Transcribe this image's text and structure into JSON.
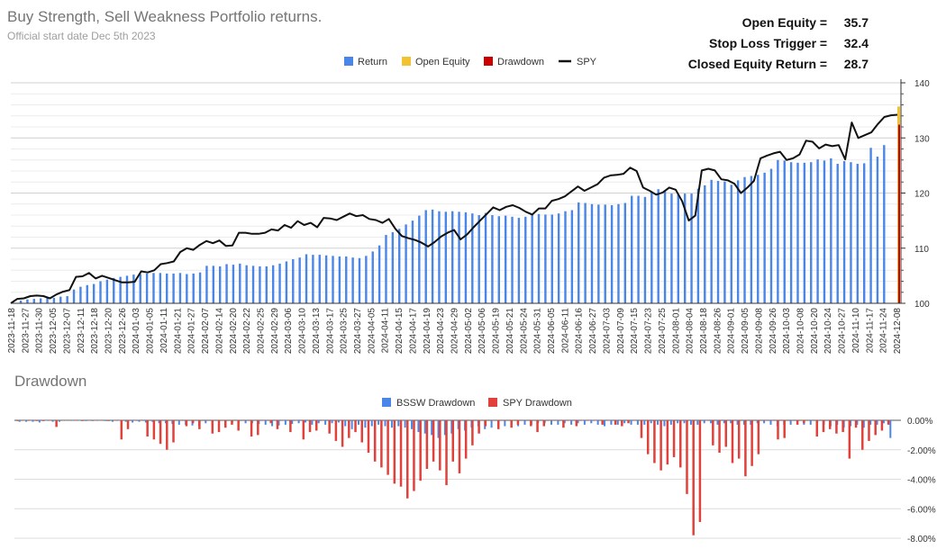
{
  "header": {
    "title": "Buy Strength, Sell Weakness Portfolio returns.",
    "subtitle": "Official start date Dec 5th 2023"
  },
  "stats": [
    {
      "label": "Open Equity =",
      "value": "35.7"
    },
    {
      "label": "Stop Loss Trigger =",
      "value": "32.4"
    },
    {
      "label": "Closed Equity Return =",
      "value": "28.7"
    }
  ],
  "colors": {
    "return": "#4a86e8",
    "open_equity": "#f1c232",
    "drawdown": "#cc0000",
    "spy": "#111111",
    "bssw_dd": "#4a86e8",
    "spy_dd": "#e0413a"
  },
  "chart_data": [
    {
      "type": "bar",
      "legend": [
        "Return",
        "Open Equity",
        "Drawdown",
        "SPY"
      ],
      "legend_position": "top",
      "ylim": [
        100,
        140
      ],
      "yticks": [
        "100",
        "110",
        "120",
        "130",
        "140"
      ],
      "grid": true,
      "x_tick_labels": [
        "2023-11-18",
        "2023-11-27",
        "2023-11-30",
        "2023-12-05",
        "2023-12-07",
        "2023-12-11",
        "2023-12-18",
        "2023-12-20",
        "2023-12-26",
        "2024-01-03",
        "2024-01-05",
        "2024-01-11",
        "2024-01-21",
        "2024-01-27",
        "2024-02-07",
        "2024-02-14",
        "2024-02-20",
        "2024-02-22",
        "2024-02-25",
        "2024-02-29",
        "2024-03-06",
        "2024-03-10",
        "2024-03-13",
        "2024-03-17",
        "2024-03-25",
        "2024-03-27",
        "2024-04-05",
        "2024-04-11",
        "2024-04-15",
        "2024-04-17",
        "2024-04-19",
        "2024-04-23",
        "2024-04-29",
        "2024-05-02",
        "2024-05-06",
        "2024-05-19",
        "2024-05-21",
        "2024-05-24",
        "2024-05-31",
        "2024-06-05",
        "2024-06-11",
        "2024-06-16",
        "2024-06-27",
        "2024-07-03",
        "2024-07-09",
        "2024-07-15",
        "2024-07-23",
        "2024-07-25",
        "2024-08-01",
        "2024-08-04",
        "2024-08-18",
        "2024-08-26",
        "2024-09-01",
        "2024-09-05",
        "2024-09-08",
        "2024-09-26",
        "2024-10-03",
        "2024-10-08",
        "2024-10-20",
        "2024-10-24",
        "2024-10-27",
        "2024-11-10",
        "2024-11-17",
        "2024-11-24",
        "2024-12-08"
      ],
      "return_values": [
        100.0,
        100.5,
        100.7,
        100.8,
        100.9,
        101.0,
        101.0,
        101.2,
        101.3,
        102.5,
        103.0,
        103.3,
        103.5,
        104.0,
        104.3,
        104.6,
        104.8,
        105.0,
        105.2,
        105.3,
        105.4,
        105.5,
        105.5,
        105.4,
        105.4,
        105.5,
        105.3,
        105.4,
        105.6,
        106.8,
        106.8,
        106.7,
        107.1,
        107.0,
        107.2,
        106.9,
        106.8,
        106.7,
        106.7,
        106.9,
        107.2,
        107.6,
        108.0,
        108.3,
        108.9,
        108.8,
        108.8,
        108.7,
        108.6,
        108.5,
        108.5,
        108.3,
        108.2,
        108.6,
        109.4,
        110.5,
        112.4,
        112.9,
        113.5,
        114.3,
        115.0,
        115.9,
        116.9,
        117.0,
        116.7,
        116.6,
        116.7,
        116.6,
        116.5,
        116.3,
        116.0,
        116.4,
        116.0,
        115.8,
        115.9,
        115.7,
        115.5,
        115.7,
        116.0,
        116.2,
        116.1,
        116.1,
        116.3,
        116.7,
        116.9,
        118.3,
        118.2,
        118.0,
        117.9,
        117.9,
        117.8,
        118.0,
        118.2,
        119.5,
        119.5,
        119.3,
        120.1,
        120.7,
        120.4,
        119.9,
        119.8,
        119.9,
        119.9,
        120.8,
        121.4,
        122.4,
        122.2,
        122.1,
        121.5,
        122.3,
        122.9,
        123.1,
        123.3,
        123.7,
        124.4,
        126.0,
        125.9,
        125.6,
        125.5,
        125.5,
        125.6,
        126.1,
        125.9,
        126.3,
        125.3,
        125.8,
        125.6,
        125.3,
        125.4,
        128.2,
        126.6,
        128.7
      ],
      "spy_values": [
        100.0,
        100.8,
        100.9,
        101.3,
        101.4,
        101.3,
        100.9,
        101.6,
        102.1,
        102.4,
        104.8,
        104.9,
        105.5,
        104.5,
        105.0,
        104.6,
        104.2,
        103.8,
        103.8,
        103.9,
        105.8,
        105.6,
        106.0,
        107.1,
        107.3,
        107.6,
        109.3,
        110.0,
        109.7,
        110.6,
        111.3,
        110.9,
        111.4,
        110.4,
        110.5,
        112.8,
        112.8,
        112.6,
        112.6,
        112.8,
        113.4,
        113.2,
        114.2,
        113.7,
        114.9,
        114.2,
        114.6,
        113.8,
        115.5,
        115.4,
        115.1,
        115.7,
        116.3,
        115.8,
        116.0,
        115.3,
        115.1,
        114.6,
        115.3,
        113.5,
        112.2,
        111.8,
        111.5,
        111.0,
        110.3,
        111.1,
        112.1,
        112.8,
        113.3,
        111.6,
        112.5,
        113.8,
        115.0,
        116.2,
        117.4,
        116.9,
        117.5,
        117.8,
        117.3,
        116.6,
        116.1,
        117.2,
        117.2,
        118.6,
        118.9,
        119.4,
        120.3,
        121.2,
        120.4,
        121.0,
        121.6,
        122.8,
        123.2,
        123.3,
        123.5,
        124.6,
        124.0,
        121.0,
        120.4,
        119.7,
        120.1,
        121.0,
        120.6,
        118.5,
        115.0,
        115.9,
        124.1,
        124.4,
        124.1,
        122.5,
        122.3,
        121.7,
        120.0,
        121.0,
        122.2,
        126.3,
        126.8,
        127.2,
        127.5,
        126.0,
        126.3,
        127.0,
        129.5,
        129.3,
        128.1,
        128.8,
        128.5,
        128.7,
        126.1,
        132.8,
        130.0,
        130.5,
        131.0,
        132.5,
        133.8,
        134.1,
        134.2
      ],
      "open_equity_value": 135.7,
      "drawdown_value": 132.4
    },
    {
      "type": "bar",
      "title": "Drawdown",
      "legend": [
        "BSSW Drawdown",
        "SPY Drawdown"
      ],
      "legend_position": "top",
      "ylim": [
        -8,
        0
      ],
      "yticks": [
        "0.00%",
        "-2.00%",
        "-4.00%",
        "-6.00%",
        "-8.00%"
      ],
      "grid": true,
      "bssw_values": [
        -0.1,
        -0.1,
        -0.1,
        -0.15,
        0,
        -0.1,
        -0.1,
        0,
        0,
        0,
        -0.05,
        -0.05,
        0,
        -0.05,
        -0.1,
        0,
        -0.1,
        -0.15,
        -0.1,
        -0.15,
        -0.1,
        -0.2,
        -0.2,
        -0.25,
        -0.3,
        -0.3,
        -0.35,
        -0.4,
        -0.2,
        -0.3,
        -0.3,
        -0.2,
        -0.15,
        -0.1,
        -0.2,
        -0.2,
        -0.25,
        -0.3,
        -0.4,
        -0.35,
        -0.3,
        -0.25,
        -0.2,
        -0.15,
        -0.3,
        -0.2,
        -0.3,
        -0.2,
        -0.15,
        -0.4,
        -0.6,
        -0.3,
        -0.5,
        -0.4,
        -0.3,
        -0.4,
        -0.5,
        -0.4,
        -0.5,
        -0.6,
        -0.8,
        -0.9,
        -1.0,
        -1.2,
        -1.0,
        -0.9,
        -0.6,
        -0.7,
        -0.5,
        -0.4,
        -0.6,
        -0.5,
        -0.4,
        -0.4,
        -0.3,
        -0.4,
        -0.3,
        -0.3,
        -0.2,
        -0.2,
        -0.3,
        -0.3,
        -0.2,
        -0.3,
        -0.2,
        -0.3,
        -0.2,
        -0.3,
        -0.4,
        -0.3,
        -0.3,
        -0.2,
        -0.3,
        -0.3,
        -0.3,
        -0.2,
        -0.3,
        -0.4,
        -0.3,
        -0.2,
        -0.2,
        -0.3,
        -0.3,
        -0.2,
        -0.2,
        -0.3,
        -0.2,
        -0.2,
        -0.3,
        -0.3,
        -0.3,
        -0.2,
        -0.2,
        -0.3,
        -0.4,
        -0.3,
        -0.3,
        -0.2,
        -0.3,
        -0.3,
        -0.2,
        -0.3,
        -0.4,
        -0.3,
        -0.5,
        -0.4,
        -0.3,
        -0.5,
        -0.3,
        -0.3,
        -0.2,
        -1.2
      ],
      "spy_values": [
        -0.05,
        0,
        0,
        -0.05,
        -0.05,
        0,
        -0.45,
        0,
        0,
        0,
        -0.05,
        0,
        0,
        0,
        -0.05,
        0,
        -1.3,
        -0.6,
        0,
        0,
        -1.1,
        -1.3,
        -1.6,
        -2.0,
        -1.5,
        0,
        -0.4,
        -0.2,
        -0.6,
        0,
        -0.9,
        -0.8,
        -0.5,
        -0.3,
        -0.7,
        0,
        -1.1,
        -1.0,
        0,
        -0.2,
        -0.6,
        0,
        -0.8,
        0,
        -1.3,
        -0.8,
        -0.7,
        0,
        -0.9,
        -1.4,
        -1.8,
        -1.2,
        -0.8,
        -1.5,
        -2.2,
        -2.8,
        -3.2,
        -3.7,
        -4.3,
        -4.5,
        -5.3,
        -4.8,
        -4.1,
        -3.3,
        -2.8,
        -3.4,
        -4.4,
        -2.8,
        -3.6,
        -2.6,
        -1.7,
        -0.9,
        -0.4,
        0,
        -0.6,
        0,
        -0.5,
        -0.3,
        0,
        -0.4,
        -0.8,
        -0.4,
        0,
        0,
        -0.5,
        0,
        -0.4,
        0,
        0,
        0,
        -0.3,
        0,
        -0.3,
        -0.4,
        -0.2,
        0,
        -1.2,
        -2.3,
        -2.9,
        -3.4,
        -3.0,
        -2.5,
        -3.2,
        -5.0,
        -7.8,
        -6.9,
        0,
        -1.7,
        -2.2,
        -1.8,
        -2.9,
        -2.6,
        -3.8,
        -3.1,
        -2.3,
        0,
        0,
        -1.3,
        -1.2,
        0,
        -0.3,
        -0.2,
        0,
        -1.1,
        -0.8,
        -0.6,
        -0.9,
        -0.8,
        -2.6,
        -0.5,
        -2.0,
        -1.4,
        -1.0,
        -0.7,
        -0.3
      ]
    }
  ]
}
